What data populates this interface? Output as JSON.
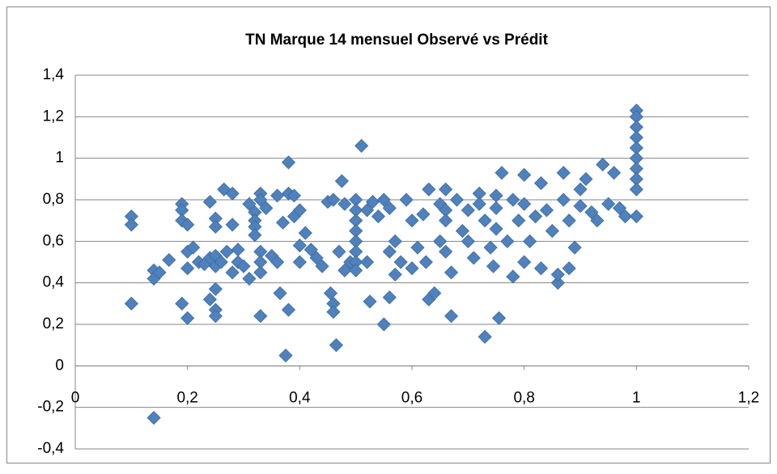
{
  "chart_data": {
    "type": "scatter",
    "title": "TN Marque 14 mensuel Observé vs Prédit",
    "color": "#4f81bd",
    "grid": true,
    "xlim": [
      0,
      1.2
    ],
    "xticks": [
      0,
      {
        "value": 0.2,
        "label": "0,2"
      },
      {
        "value": 0.4,
        "label": "0,4"
      },
      {
        "value": 0.6,
        "label": "0,6"
      },
      {
        "value": 0.8,
        "label": "0,8"
      },
      1,
      {
        "value": 1.2,
        "label": "1,2"
      }
    ],
    "ylim": [
      -0.4,
      1.4
    ],
    "yticks": [
      {
        "value": -0.4,
        "label": "-0,4"
      },
      {
        "value": -0.2,
        "label": "-0,2"
      },
      0,
      {
        "value": 0.2,
        "label": "0,2"
      },
      {
        "value": 0.4,
        "label": "0,4"
      },
      {
        "value": 0.6,
        "label": "0,6"
      },
      {
        "value": 0.8,
        "label": "0,8"
      },
      1,
      {
        "value": 1.2,
        "label": "1,2"
      },
      {
        "value": 1.4,
        "label": "1,4"
      }
    ],
    "x": [
      0.1,
      0.1,
      0.1,
      0.14,
      0.14,
      0.14,
      0.15,
      0.167,
      0.19,
      0.19,
      0.19,
      0.19,
      0.2,
      0.2,
      0.2,
      0.2,
      0.21,
      0.22,
      0.23,
      0.24,
      0.24,
      0.24,
      0.25,
      0.25,
      0.25,
      0.25,
      0.25,
      0.25,
      0.25,
      0.26,
      0.265,
      0.27,
      0.28,
      0.28,
      0.28,
      0.29,
      0.29,
      0.3,
      0.31,
      0.31,
      0.32,
      0.32,
      0.32,
      0.32,
      0.33,
      0.33,
      0.33,
      0.33,
      0.33,
      0.33,
      0.34,
      0.35,
      0.36,
      0.36,
      0.365,
      0.37,
      0.375,
      0.38,
      0.38,
      0.38,
      0.39,
      0.39,
      0.4,
      0.4,
      0.4,
      0.41,
      0.42,
      0.43,
      0.44,
      0.45,
      0.455,
      0.46,
      0.46,
      0.46,
      0.465,
      0.47,
      0.475,
      0.48,
      0.48,
      0.49,
      0.5,
      0.5,
      0.5,
      0.5,
      0.5,
      0.5,
      0.5,
      0.5,
      0.51,
      0.52,
      0.52,
      0.525,
      0.53,
      0.54,
      0.55,
      0.55,
      0.56,
      0.56,
      0.56,
      0.57,
      0.57,
      0.58,
      0.59,
      0.6,
      0.6,
      0.61,
      0.62,
      0.625,
      0.63,
      0.63,
      0.64,
      0.65,
      0.65,
      0.66,
      0.66,
      0.66,
      0.66,
      0.67,
      0.67,
      0.68,
      0.69,
      0.7,
      0.7,
      0.71,
      0.72,
      0.72,
      0.73,
      0.73,
      0.74,
      0.745,
      0.75,
      0.75,
      0.75,
      0.755,
      0.76,
      0.77,
      0.78,
      0.78,
      0.79,
      0.8,
      0.8,
      0.8,
      0.81,
      0.82,
      0.83,
      0.83,
      0.84,
      0.85,
      0.86,
      0.86,
      0.87,
      0.87,
      0.88,
      0.88,
      0.89,
      0.9,
      0.9,
      0.91,
      0.92,
      0.93,
      0.94,
      0.95,
      0.96,
      0.97,
      0.98,
      1,
      1,
      1,
      1,
      1,
      1,
      1,
      1,
      1,
      1
    ],
    "values": [
      0.72,
      0.68,
      0.3,
      0.46,
      0.42,
      -0.25,
      0.45,
      0.51,
      0.78,
      0.75,
      0.7,
      0.3,
      0.68,
      0.55,
      0.47,
      0.23,
      0.57,
      0.5,
      0.49,
      0.79,
      0.52,
      0.32,
      0.71,
      0.67,
      0.53,
      0.48,
      0.37,
      0.27,
      0.24,
      0.5,
      0.85,
      0.55,
      0.83,
      0.68,
      0.45,
      0.56,
      0.5,
      0.48,
      0.42,
      0.78,
      0.74,
      0.7,
      0.67,
      0.63,
      0.83,
      0.8,
      0.55,
      0.5,
      0.45,
      0.24,
      0.76,
      0.53,
      0.82,
      0.5,
      0.35,
      0.69,
      0.05,
      0.98,
      0.83,
      0.27,
      0.82,
      0.72,
      0.75,
      0.5,
      0.58,
      0.64,
      0.56,
      0.52,
      0.48,
      0.79,
      0.35,
      0.8,
      0.3,
      0.26,
      0.1,
      0.55,
      0.89,
      0.78,
      0.46,
      0.5,
      0.8,
      0.75,
      0.7,
      0.65,
      0.6,
      0.55,
      0.5,
      0.46,
      1.06,
      0.75,
      0.5,
      0.31,
      0.79,
      0.72,
      0.8,
      0.2,
      0.76,
      0.55,
      0.33,
      0.6,
      0.44,
      0.5,
      0.8,
      0.7,
      0.47,
      0.57,
      0.73,
      0.5,
      0.32,
      0.85,
      0.35,
      0.78,
      0.6,
      0.85,
      0.75,
      0.7,
      0.55,
      0.45,
      0.24,
      0.8,
      0.65,
      0.75,
      0.6,
      0.52,
      0.83,
      0.78,
      0.14,
      0.7,
      0.57,
      0.48,
      0.82,
      0.76,
      0.66,
      0.23,
      0.93,
      0.6,
      0.43,
      0.8,
      0.7,
      0.92,
      0.78,
      0.5,
      0.6,
      0.72,
      0.88,
      0.47,
      0.75,
      0.65,
      0.4,
      0.44,
      0.93,
      0.8,
      0.7,
      0.47,
      0.57,
      0.85,
      0.77,
      0.9,
      0.74,
      0.7,
      0.97,
      0.78,
      0.93,
      0.76,
      0.72,
      1.23,
      1.2,
      1.15,
      1.1,
      1.05,
      1.0,
      0.95,
      0.9,
      0.85,
      0.72
    ]
  }
}
